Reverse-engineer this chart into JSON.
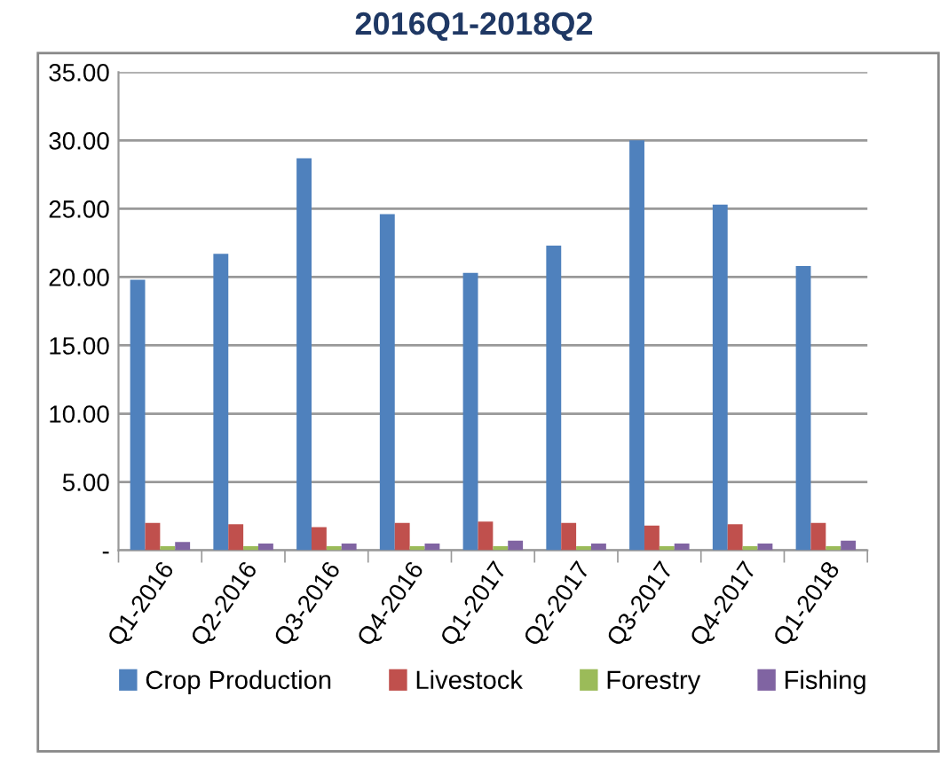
{
  "chart_data": {
    "type": "bar",
    "title": "2016Q1-2018Q2",
    "categories": [
      "Q1-2016",
      "Q2-2016",
      "Q3-2016",
      "Q4-2016",
      "Q1-2017",
      "Q2-2017",
      "Q3-2017",
      "Q4-2017",
      "Q1-2018"
    ],
    "series": [
      {
        "name": "Crop Production",
        "color": "#4f81bd",
        "values": [
          19.8,
          21.7,
          28.7,
          24.6,
          20.3,
          22.3,
          30.0,
          25.3,
          20.8
        ]
      },
      {
        "name": "Livestock",
        "color": "#c0504d",
        "values": [
          2.0,
          1.9,
          1.7,
          2.0,
          2.1,
          2.0,
          1.8,
          1.9,
          2.0
        ]
      },
      {
        "name": "Forestry",
        "color": "#9bbb59",
        "values": [
          0.3,
          0.3,
          0.3,
          0.3,
          0.3,
          0.3,
          0.3,
          0.3,
          0.3
        ]
      },
      {
        "name": "Fishing",
        "color": "#8064a2",
        "values": [
          0.6,
          0.5,
          0.5,
          0.5,
          0.7,
          0.5,
          0.5,
          0.5,
          0.7
        ]
      }
    ],
    "ylim": [
      0,
      35
    ],
    "yticks": [
      {
        "value": 0,
        "label": "-"
      },
      {
        "value": 5,
        "label": "5.00"
      },
      {
        "value": 10,
        "label": "10.00"
      },
      {
        "value": 15,
        "label": "15.00"
      },
      {
        "value": 20,
        "label": "20.00"
      },
      {
        "value": 25,
        "label": "25.00"
      },
      {
        "value": 30,
        "label": "30.00"
      },
      {
        "value": 35,
        "label": "35.00"
      }
    ],
    "grid": "y",
    "legend": "bottom"
  }
}
